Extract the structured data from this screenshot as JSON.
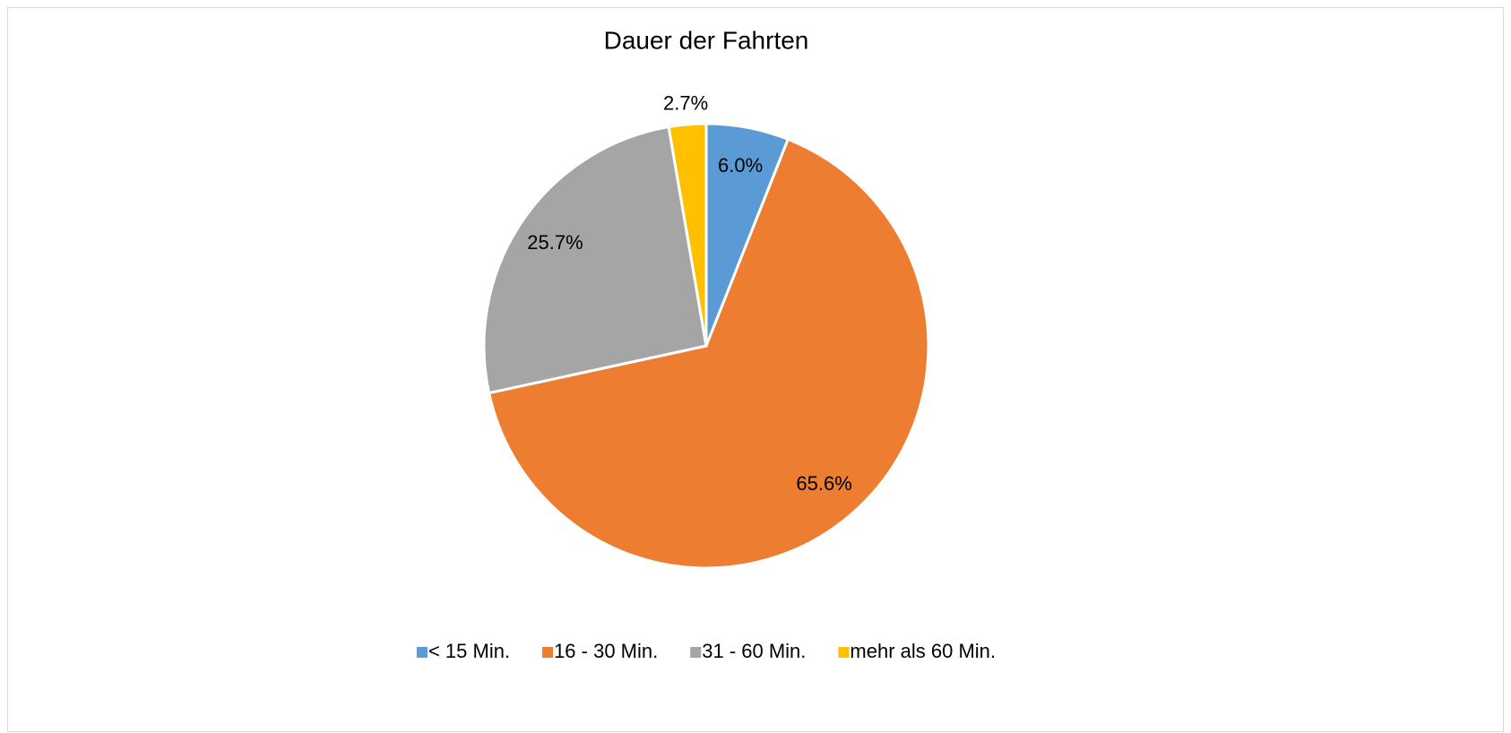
{
  "chart_data": {
    "type": "pie",
    "title": "Dauer der Fahrten",
    "categories": [
      "< 15 Min.",
      "16 - 30 Min.",
      "31 - 60 Min.",
      "mehr als 60 Min."
    ],
    "values": [
      6.0,
      65.6,
      25.7,
      2.7
    ],
    "value_labels": [
      "6.0%",
      "65.6%",
      "25.7%",
      "2.7%"
    ],
    "colors": [
      "#5b9bd5",
      "#ed7d31",
      "#a5a5a5",
      "#ffc000"
    ],
    "legend": "bottom"
  }
}
